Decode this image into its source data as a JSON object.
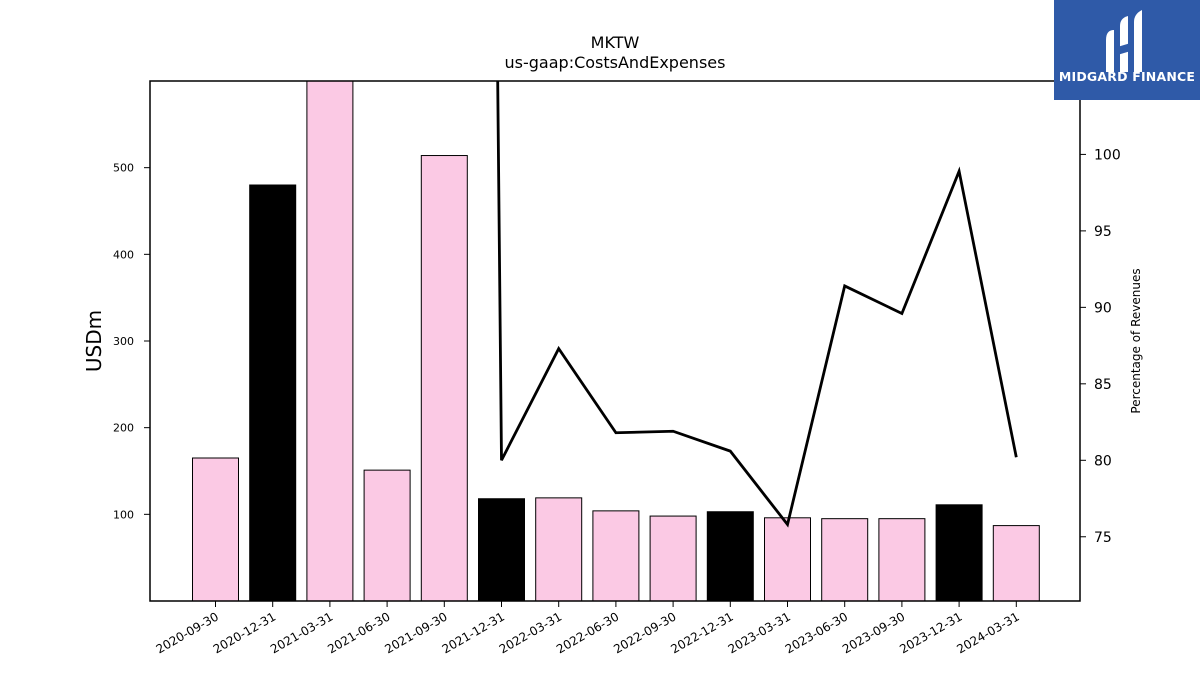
{
  "logo": {
    "text": "MIDGARD FINANCE",
    "icon": "midgard-logo-icon",
    "colors": {
      "background": "#2f5aa8",
      "foreground": "#ffffff"
    }
  },
  "chart_data": {
    "type": "bar",
    "title": "MKTW",
    "subtitle": "us-gaap:CostsAndExpenses",
    "ylabel": "USDm",
    "y2label": "Percentage of Revenues",
    "categories": [
      "2020-09-30",
      "2020-12-31",
      "2021-03-31",
      "2021-06-30",
      "2021-09-30",
      "2021-12-31",
      "2022-03-31",
      "2022-06-30",
      "2022-09-30",
      "2022-12-31",
      "2023-03-31",
      "2023-06-30",
      "2023-09-30",
      "2023-12-31",
      "2024-03-31"
    ],
    "bars": {
      "name": "Costs and Expenses",
      "values": [
        165,
        480,
        600,
        151,
        514,
        118,
        119,
        104,
        98,
        103,
        96,
        95,
        95,
        111,
        87
      ],
      "quarter_type": [
        "Q",
        "FY",
        "Q",
        "Q",
        "Q",
        "FY",
        "Q",
        "Q",
        "Q",
        "FY",
        "Q",
        "Q",
        "Q",
        "FY",
        "Q"
      ],
      "colors": {
        "Q": "#fbc9e4",
        "FY": "#000000"
      }
    },
    "line": {
      "name": "Percentage of Revenues",
      "values": [
        null,
        null,
        null,
        null,
        null,
        80.0,
        87.3,
        81.8,
        81.9,
        80.6,
        75.8,
        91.4,
        89.6,
        98.9,
        80.2
      ],
      "start_above_axis": true,
      "color": "#000000"
    },
    "ylim": [
      0,
      600
    ],
    "yticks": [
      100,
      200,
      300,
      400,
      500
    ],
    "y2lim": [
      70.8,
      104.8
    ],
    "y2ticks": [
      75,
      80,
      85,
      90,
      95,
      100
    ],
    "grid": false,
    "legend": "none"
  }
}
